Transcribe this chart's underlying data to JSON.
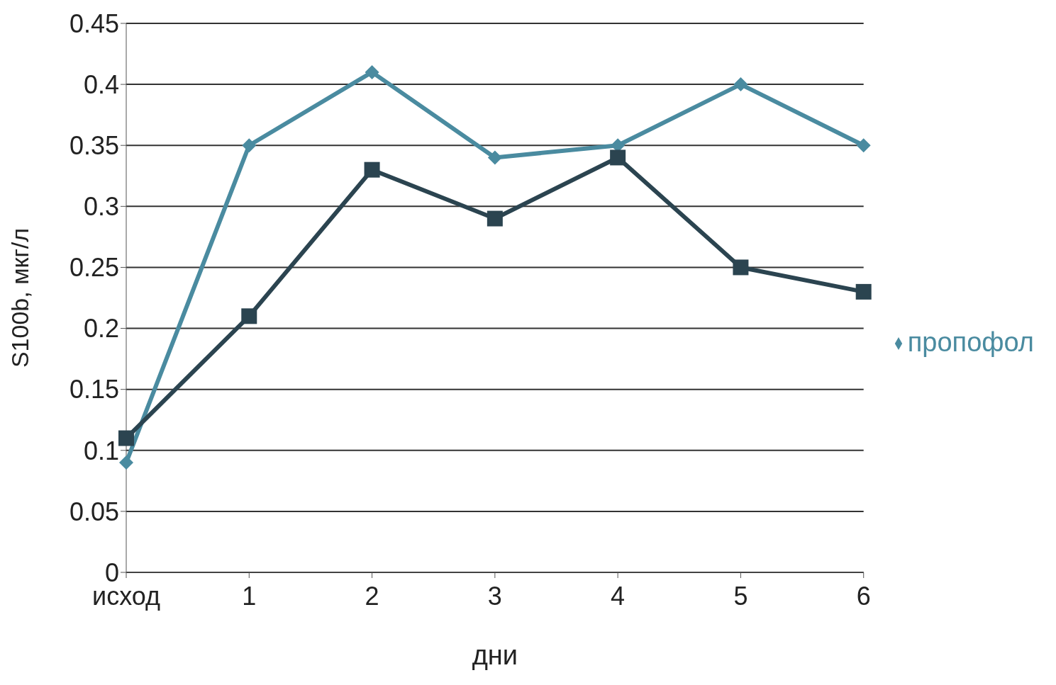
{
  "chart_data": {
    "type": "line",
    "xlabel": "дни",
    "ylabel": "S100b, мкг/л",
    "categories": [
      "исход",
      "1",
      "2",
      "3",
      "4",
      "5",
      "6"
    ],
    "series": [
      {
        "name": "пропофол",
        "color": "#4a8ba0",
        "marker": "diamond",
        "values": [
          0.09,
          0.35,
          0.41,
          0.34,
          0.35,
          0.4,
          0.35
        ]
      },
      {
        "color": "#2b4450",
        "marker": "square",
        "values": [
          0.11,
          0.21,
          0.33,
          0.29,
          0.34,
          0.25,
          0.23
        ]
      }
    ],
    "ylim": [
      0,
      0.45
    ],
    "yticks": [
      0,
      0.05,
      0.1,
      0.15,
      0.2,
      0.25,
      0.3,
      0.35,
      0.4,
      0.45
    ],
    "grid": "y",
    "legend": "right"
  }
}
